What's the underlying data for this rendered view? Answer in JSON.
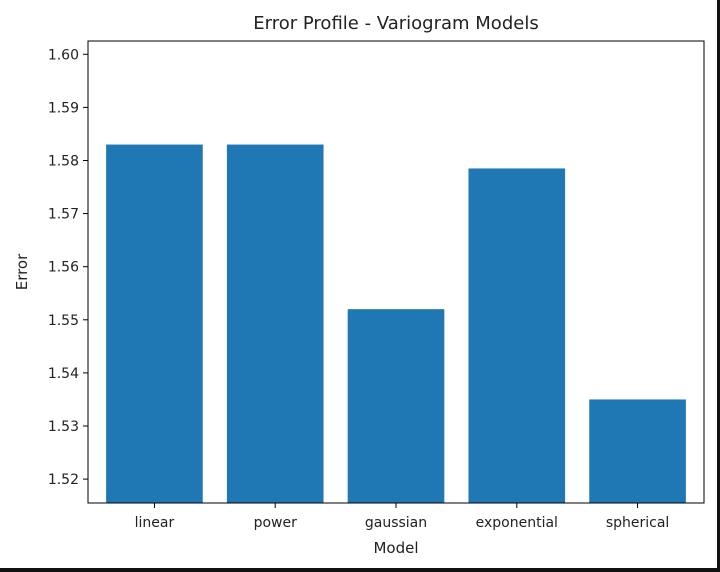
{
  "chart_data": {
    "type": "bar",
    "title": "Error Profile - Variogram Models",
    "xlabel": "Model",
    "ylabel": "Error",
    "categories": [
      "linear",
      "power",
      "gaussian",
      "exponential",
      "spherical"
    ],
    "values": [
      1.583,
      1.583,
      1.552,
      1.5785,
      1.535
    ],
    "ylim": [
      1.5155,
      1.6025
    ],
    "yticks": [
      "1.52",
      "1.53",
      "1.54",
      "1.55",
      "1.56",
      "1.57",
      "1.58",
      "1.59",
      "1.60"
    ],
    "bar_color": "#1f77b4",
    "grid": false,
    "legend": "none"
  }
}
